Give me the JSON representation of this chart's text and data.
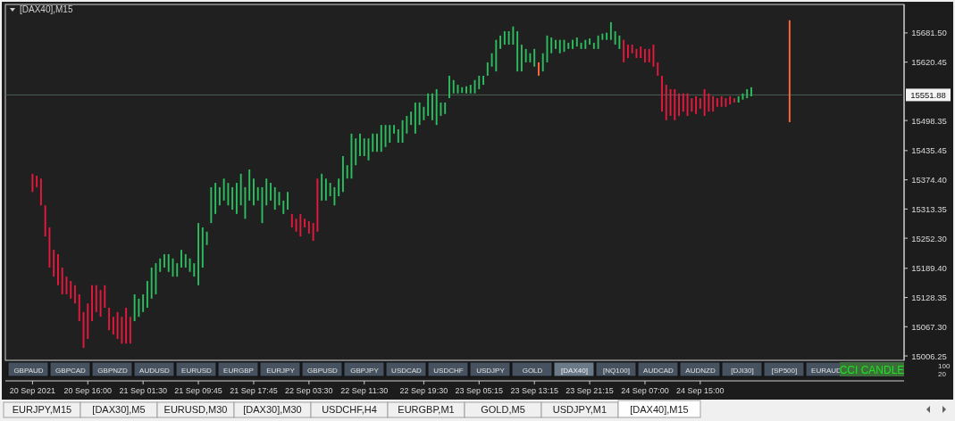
{
  "chart_data": {
    "type": "bar",
    "title": "[DAX40],M15",
    "categories": [
      "20 Sep 2021",
      null,
      null,
      null,
      null,
      null,
      null,
      null,
      null,
      null,
      null,
      null,
      null,
      "20 Sep 16:00",
      null,
      null,
      null,
      null,
      null,
      null,
      null,
      null,
      null,
      null,
      null,
      null,
      "21 Sep 01:30",
      null,
      null,
      null,
      null,
      null,
      null,
      null,
      null,
      null,
      null,
      null,
      null,
      "21 Sep 09:45",
      null,
      null,
      null,
      null,
      null,
      null,
      null,
      null,
      null,
      null,
      null,
      null,
      "21 Sep 17:45",
      null,
      null,
      null,
      null,
      null,
      null,
      null,
      null,
      null,
      null,
      null,
      null,
      "22 Sep 03:30",
      null,
      null,
      null,
      null,
      null,
      null,
      null,
      null,
      null,
      null,
      null,
      null,
      "22 Sep 11:30",
      null,
      null,
      null,
      null,
      null,
      null,
      null,
      null,
      null,
      null,
      null,
      null,
      null,
      "22 Sep 19:30",
      null,
      null,
      null,
      null,
      null,
      null,
      null,
      null,
      null,
      null,
      null,
      null,
      "23 Sep 05:15",
      null,
      null,
      null,
      null,
      null,
      null,
      null,
      null,
      null,
      null,
      null,
      null,
      "23 Sep 13:15",
      null,
      null,
      null,
      null,
      null,
      null,
      null,
      null,
      null,
      null,
      null,
      null,
      "23 Sep 21:15",
      null,
      null,
      null,
      null,
      null,
      null,
      null,
      null,
      null,
      null,
      null,
      null,
      "24 Sep 07:00",
      null,
      null,
      null,
      null,
      null,
      null,
      null,
      null,
      null,
      null,
      null,
      null,
      "24 Sep 15:00",
      null,
      null,
      null,
      null,
      null,
      null,
      null,
      null,
      null,
      null,
      null,
      null,
      null,
      null,
      null,
      null,
      null,
      null,
      null,
      null,
      null,
      null,
      null,
      null,
      null,
      null,
      null,
      null,
      null,
      null,
      null,
      null,
      null,
      null,
      null,
      null,
      null,
      null,
      null,
      null,
      null,
      null,
      null,
      null,
      null,
      null,
      null
    ],
    "base": [
      15349,
      15359,
      15321,
      15256,
      15191,
      15172,
      15154,
      15135,
      15135,
      15126,
      15116,
      15079,
      15023,
      15042,
      15079,
      15098,
      15088,
      15107,
      15060,
      15051,
      15042,
      15032,
      15032,
      15032,
      15079,
      15088,
      15098,
      15107,
      15126,
      15135,
      15182,
      15191,
      15182,
      15172,
      15172,
      15191,
      15191,
      15182,
      15172,
      15154,
      15191,
      15238,
      15284,
      15303,
      15321,
      15331,
      15321,
      15312,
      15303,
      15321,
      15293,
      15331,
      15321,
      15331,
      15284,
      15321,
      15331,
      15312,
      15321,
      15303,
      15312,
      15275,
      15266,
      15256,
      15275,
      15262,
      15247,
      15266,
      15331,
      15331,
      15340,
      15321,
      15340,
      15349,
      15377,
      15377,
      15405,
      15424,
      15424,
      15415,
      15433,
      15433,
      15433,
      15443,
      15452,
      15471,
      15452,
      15452,
      15471,
      15489,
      15471,
      15489,
      15499,
      15508,
      15499,
      15489,
      15508,
      15512,
      15545,
      15555,
      15555,
      15556,
      15555,
      15555,
      15555,
      15564,
      15573,
      15592,
      15611,
      15601,
      15648,
      15657,
      15657,
      15657,
      15601,
      15601,
      15620,
      15620,
      15611,
      15592,
      15601,
      15620,
      15639,
      15648,
      15639,
      15642,
      15648,
      15648,
      15653,
      15648,
      15648,
      15657,
      15648,
      15648,
      15667,
      15667,
      15667,
      15657,
      15648,
      15620,
      15629,
      15639,
      15629,
      15629,
      15620,
      15620,
      15611,
      15592,
      15517,
      15499,
      15508,
      15499,
      15508,
      15517,
      15508,
      15517,
      15512,
      15523,
      15508,
      15517,
      15517,
      15527,
      15527,
      15527,
      15532,
      15536,
      15536,
      15542,
      15545,
      15549,
      null,
      null,
      null,
      null,
      null,
      null,
      null,
      null,
      15495,
      null,
      null,
      null,
      null,
      null,
      null,
      null,
      null,
      null,
      null,
      null,
      null,
      null,
      null,
      null,
      null,
      null,
      null,
      null,
      null,
      null,
      null,
      null,
      null,
      null,
      null
    ],
    "values": [
      38,
      24,
      56,
      65,
      84,
      56,
      65,
      56,
      37,
      37,
      38,
      56,
      75,
      74,
      75,
      56,
      56,
      47,
      47,
      37,
      56,
      56,
      75,
      56,
      56,
      38,
      37,
      56,
      65,
      65,
      28,
      28,
      37,
      38,
      28,
      37,
      28,
      28,
      28,
      130,
      84,
      28,
      75,
      65,
      38,
      46,
      47,
      47,
      65,
      66,
      66,
      65,
      56,
      28,
      75,
      56,
      37,
      47,
      28,
      28,
      37,
      28,
      27,
      47,
      18,
      26,
      37,
      111,
      56,
      46,
      28,
      38,
      37,
      75,
      28,
      94,
      56,
      47,
      37,
      46,
      38,
      38,
      56,
      46,
      37,
      18,
      28,
      47,
      37,
      28,
      65,
      47,
      28,
      47,
      56,
      75,
      28,
      24,
      47,
      28,
      18,
      12,
      15,
      18,
      28,
      28,
      19,
      28,
      28,
      66,
      28,
      28,
      28,
      38,
      84,
      56,
      28,
      19,
      37,
      28,
      38,
      56,
      33,
      19,
      28,
      25,
      13,
      19,
      19,
      13,
      19,
      13,
      13,
      28,
      13,
      15,
      37,
      28,
      28,
      47,
      28,
      18,
      19,
      24,
      28,
      28,
      46,
      28,
      75,
      74,
      56,
      65,
      47,
      38,
      47,
      28,
      37,
      22,
      56,
      38,
      32,
      18,
      22,
      18,
      17,
      9,
      13,
      13,
      19,
      19,
      null,
      null,
      null,
      null,
      null,
      null,
      null,
      null,
      213,
      null,
      null,
      null,
      null,
      null,
      null,
      null,
      null,
      null,
      null,
      null,
      null,
      null,
      null,
      null,
      null,
      null,
      null,
      null,
      null,
      null,
      null,
      null,
      null,
      null,
      null
    ],
    "colors": [
      "#e5193d",
      "#e5193d",
      "#e5193d",
      "#e5193d",
      "#e5193d",
      "#e5193d",
      "#e5193d",
      "#e5193d",
      "#e5193d",
      "#e5193d",
      "#e5193d",
      "#e5193d",
      "#e5193d",
      "#e5193d",
      "#e5193d",
      "#e5193d",
      "#e5193d",
      "#e5193d",
      "#e5193d",
      "#e5193d",
      "#e5193d",
      "#e5193d",
      "#e5193d",
      "#e5193d",
      "#2dbd5e",
      "#2dbd5e",
      "#2dbd5e",
      "#2dbd5e",
      "#2dbd5e",
      "#2dbd5e",
      "#2dbd5e",
      "#2dbd5e",
      "#2dbd5e",
      "#2dbd5e",
      "#2dbd5e",
      "#2dbd5e",
      "#2dbd5e",
      "#2dbd5e",
      "#2dbd5e",
      "#2dbd5e",
      "#2dbd5e",
      "#2dbd5e",
      "#2dbd5e",
      "#2dbd5e",
      "#2dbd5e",
      "#2dbd5e",
      "#2dbd5e",
      "#2dbd5e",
      "#2dbd5e",
      "#2dbd5e",
      "#2dbd5e",
      "#2dbd5e",
      "#2dbd5e",
      "#2dbd5e",
      "#2dbd5e",
      "#2dbd5e",
      "#2dbd5e",
      "#2dbd5e",
      "#2dbd5e",
      "#2dbd5e",
      "#2dbd5e",
      "#e5193d",
      "#e5193d",
      "#e5193d",
      "#e5193d",
      "#e5193d",
      "#e5193d",
      "#e5193d",
      "#2dbd5e",
      "#2dbd5e",
      "#2dbd5e",
      "#2dbd5e",
      "#2dbd5e",
      "#2dbd5e",
      "#2dbd5e",
      "#2dbd5e",
      "#2dbd5e",
      "#2dbd5e",
      "#2dbd5e",
      "#2dbd5e",
      "#2dbd5e",
      "#2dbd5e",
      "#2dbd5e",
      "#2dbd5e",
      "#2dbd5e",
      "#2dbd5e",
      "#2dbd5e",
      "#2dbd5e",
      "#2dbd5e",
      "#2dbd5e",
      "#2dbd5e",
      "#2dbd5e",
      "#2dbd5e",
      "#2dbd5e",
      "#2dbd5e",
      "#2dbd5e",
      "#2dbd5e",
      "#2dbd5e",
      "#2dbd5e",
      "#2dbd5e",
      "#2dbd5e",
      "#2dbd5e",
      "#2dbd5e",
      "#2dbd5e",
      "#2dbd5e",
      "#2dbd5e",
      "#2dbd5e",
      "#2dbd5e",
      "#2dbd5e",
      "#2dbd5e",
      "#2dbd5e",
      "#2dbd5e",
      "#2dbd5e",
      "#2dbd5e",
      "#2dbd5e",
      "#2dbd5e",
      "#2dbd5e",
      "#2dbd5e",
      "#2dbd5e",
      "#ff6a3d",
      "#2dbd5e",
      "#2dbd5e",
      "#2dbd5e",
      "#2dbd5e",
      "#2dbd5e",
      "#2dbd5e",
      "#2dbd5e",
      "#2dbd5e",
      "#2dbd5e",
      "#2dbd5e",
      "#2dbd5e",
      "#2dbd5e",
      "#2dbd5e",
      "#2dbd5e",
      "#2dbd5e",
      "#2dbd5e",
      "#2dbd5e",
      "#2dbd5e",
      "#2dbd5e",
      "#e5193d",
      "#e5193d",
      "#e5193d",
      "#e5193d",
      "#e5193d",
      "#e5193d",
      "#e5193d",
      "#e5193d",
      "#e5193d",
      "#e5193d",
      "#e5193d",
      "#e5193d",
      "#e5193d",
      "#e5193d",
      "#e5193d",
      "#e5193d",
      "#e5193d",
      "#e5193d",
      "#e5193d",
      "#e5193d",
      "#e5193d",
      "#e5193d",
      "#e5193d",
      "#e5193d",
      "#e5193d",
      "#e5193d",
      "#e5193d",
      "#2dbd5e",
      "#2dbd5e",
      "#2dbd5e",
      "#2dbd5e",
      null,
      null,
      null,
      null,
      null,
      null,
      null,
      null,
      "#ff6a3d",
      null,
      null,
      null,
      null,
      null,
      null,
      null,
      null,
      null,
      null,
      null,
      null,
      null,
      null,
      null,
      null,
      null,
      null,
      null,
      null,
      null,
      null,
      null,
      null,
      null,
      null
    ],
    "ylim": [
      14997,
      15741
    ],
    "yticks": [
      {
        "value": 15006.25,
        "label": "15006.25"
      },
      {
        "value": 15067.3,
        "label": "15067.30"
      },
      {
        "value": 15128.35,
        "label": "15128.35"
      },
      {
        "value": 15189.4,
        "label": "15189.40"
      },
      {
        "value": 15252.3,
        "label": "15252.30"
      },
      {
        "value": 15313.35,
        "label": "15313.35"
      },
      {
        "value": 15374.4,
        "label": "15374.40"
      },
      {
        "value": 15435.45,
        "label": "15435.45"
      },
      {
        "value": 15498.35,
        "label": "15498.35"
      },
      {
        "value": 15620.45,
        "label": "15620.45"
      },
      {
        "value": 15681.5,
        "label": "15681.50"
      }
    ],
    "ref_lines": [
      {
        "axis": "y",
        "value": 15551.88,
        "label": "15551.88",
        "color": "#4a5e52"
      }
    ],
    "annotations": [
      "GBPAUD",
      "GBPCAD",
      "GBPNZD",
      "AUDUSD",
      "EURUSD",
      "EURGBP",
      "EURJPY",
      "GBPUSD",
      "GBPJPY",
      "USDCAD",
      "USDCHF",
      "USDJPY",
      "GOLD",
      "[DAX40]",
      "[NQ100]",
      "AUDCAD",
      "AUDNZD",
      "[DJI30]",
      "[SP500]",
      "EURAUD",
      "CCI CANDLE",
      "100",
      "20",
      "EURJPY,M15",
      "[DAX30],M5",
      "EURUSD,M30",
      "[DAX30],M30",
      "USDCHF,H4",
      "EURGBP,M1",
      "GOLD,M5",
      "USDJPY,M1",
      "[DAX40],M15"
    ],
    "grid": false
  }
}
